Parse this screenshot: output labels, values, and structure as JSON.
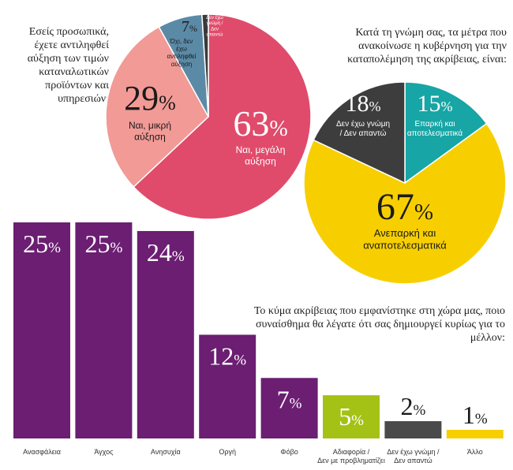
{
  "questions": {
    "q1": "Εσείς προσωπικά, έχετε αντιληφθεί αύξηση των τιμών καταναλωτικών προϊόντων και υπηρεσιών;",
    "q2": "Κατά τη γνώμη σας, τα μέτρα που ανακοίνωσε η κυβέρνηση για την καταπολέμηση της ακρίβειας, είναι:",
    "q3": "Το κύμα ακρίβειας που εμφανίστηκε στη χώρα μας, ποιο συναίσθημα θα λέγατε ότι σας δημιουργεί κυρίως για το μέλλον:"
  },
  "chart_data": [
    {
      "type": "pie",
      "title": "Εσείς προσωπικά, έχετε αντιληφθεί αύξηση των τιμών καταναλωτικών προϊόντων και υπηρεσιών;",
      "slices": [
        {
          "label": "Ναι, μεγάλη αύξηση",
          "value": 63,
          "pct": "63",
          "color": "#e04b6b"
        },
        {
          "label": "Ναι, μικρή αύξηση",
          "value": 29,
          "pct": "29",
          "color": "#f29a96"
        },
        {
          "label": "Όχι, δεν έχω αντιληφθεί αύξηση",
          "value": 7,
          "pct": "7",
          "color": "#5b8aa6"
        },
        {
          "label": "Δεν έχω γνώμη / Δεν απαντώ",
          "value": 1,
          "pct": "1",
          "color": "#3a3a3a"
        }
      ]
    },
    {
      "type": "pie",
      "title": "Κατά τη γνώμη σας, τα μέτρα που ανακοίνωσε η κυβέρνηση για την καταπολέμηση της ακρίβειας, είναι:",
      "slices": [
        {
          "label": "Επαρκή και αποτελεσματικά",
          "value": 15,
          "pct": "15",
          "color": "#17a5a5"
        },
        {
          "label": "Ανεπαρκή και αναποτελεσματικά",
          "value": 67,
          "pct": "67",
          "color": "#f7cf00"
        },
        {
          "label": "Δεν έχω γνώμη / Δεν απαντώ",
          "value": 18,
          "pct": "18",
          "color": "#3d3d3d"
        }
      ]
    },
    {
      "type": "bar",
      "title": "Το κύμα ακρίβειας που εμφανίστηκε στη χώρα μας, ποιο συναίσθημα θα λέγατε ότι σας δημιουργεί κυρίως για το μέλλον:",
      "categories": [
        "Ανασφάλεια",
        "Άγχος",
        "Ανησυχία",
        "Οργή",
        "Φόβο",
        "Αδιαφορία / Δεν με προβληματίζει",
        "Δεν έχω γνώμη / Δεν απαντώ",
        "Άλλο"
      ],
      "values": [
        25,
        25,
        24,
        12,
        7,
        5,
        2,
        1
      ],
      "colors": [
        "#6b1e72",
        "#6b1e72",
        "#6b1e72",
        "#6b1e72",
        "#6b1e72",
        "#a4c215",
        "#4a4a4a",
        "#f7cf00"
      ],
      "ylim": [
        0,
        25
      ]
    }
  ],
  "percent_sign": "%"
}
